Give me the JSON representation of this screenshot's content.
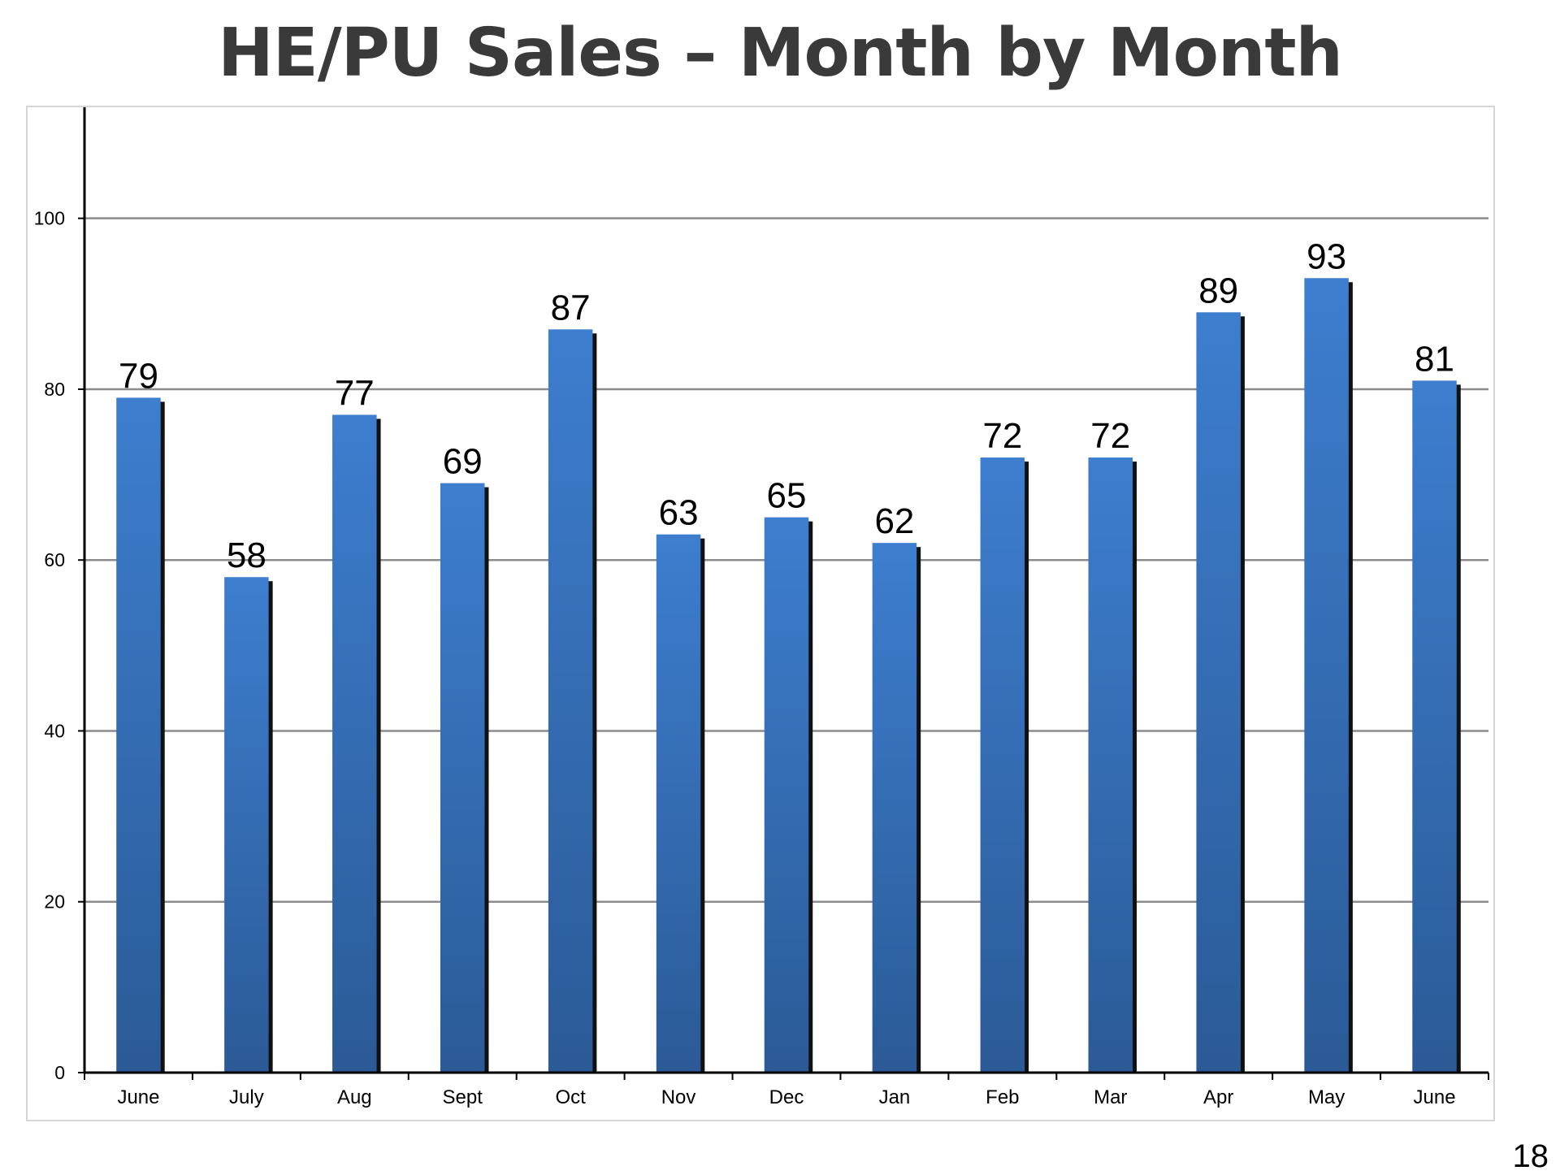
{
  "slide": {
    "title": "HE/PU Sales – Month by Month",
    "page_number": "18"
  },
  "colors": {
    "bar_top": "#3d7ecf",
    "bar_bottom": "#2b5a96",
    "bar_shadow": "#111111",
    "gridline": "#8c8c8c",
    "axis": "#000000",
    "frame": "#d6d6d6"
  },
  "chart_data": {
    "type": "bar",
    "categories": [
      "June",
      "July",
      "Aug",
      "Sept",
      "Oct",
      "Nov",
      "Dec",
      "Jan",
      "Feb",
      "Mar",
      "Apr",
      "May",
      "June"
    ],
    "values": [
      79,
      58,
      77,
      69,
      87,
      63,
      65,
      62,
      72,
      72,
      89,
      93,
      81
    ],
    "data_labels": [
      "79",
      "58",
      "77",
      "69",
      "87",
      "63",
      "65",
      "62",
      "72",
      "72",
      "89",
      "93",
      "81"
    ],
    "yticks": [
      0,
      20,
      40,
      60,
      80,
      100
    ],
    "ylim": [
      0,
      113
    ],
    "xlabel": "",
    "ylabel": "",
    "grid": true,
    "legend": "none"
  }
}
